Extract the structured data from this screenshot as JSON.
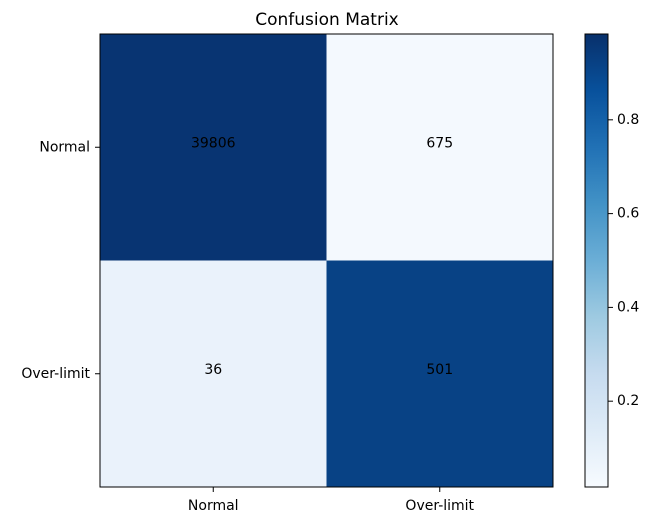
{
  "chart_data": {
    "type": "heatmap",
    "title": "Confusion Matrix",
    "xlabel": "",
    "ylabel": "",
    "x_categories": [
      "Normal",
      "Over-limit"
    ],
    "y_categories": [
      "Normal",
      "Over-limit"
    ],
    "values": [
      [
        39806,
        675
      ],
      [
        36,
        501
      ]
    ],
    "normalized": [
      [
        0.983,
        0.017
      ],
      [
        0.067,
        0.933
      ]
    ],
    "colormap": "Blues",
    "colormap_colors": [
      "#f7fbff",
      "#deebf7",
      "#c6dbef",
      "#9ecae1",
      "#6baed6",
      "#4292c6",
      "#2171b5",
      "#08519c",
      "#08306b"
    ],
    "colorbar": {
      "range": [
        0.017,
        0.983
      ],
      "ticks": [
        0.2,
        0.4,
        0.6,
        0.8
      ],
      "tick_labels": [
        "0.2",
        "0.4",
        "0.6",
        "0.8"
      ]
    },
    "grid": false,
    "legend": "none"
  }
}
